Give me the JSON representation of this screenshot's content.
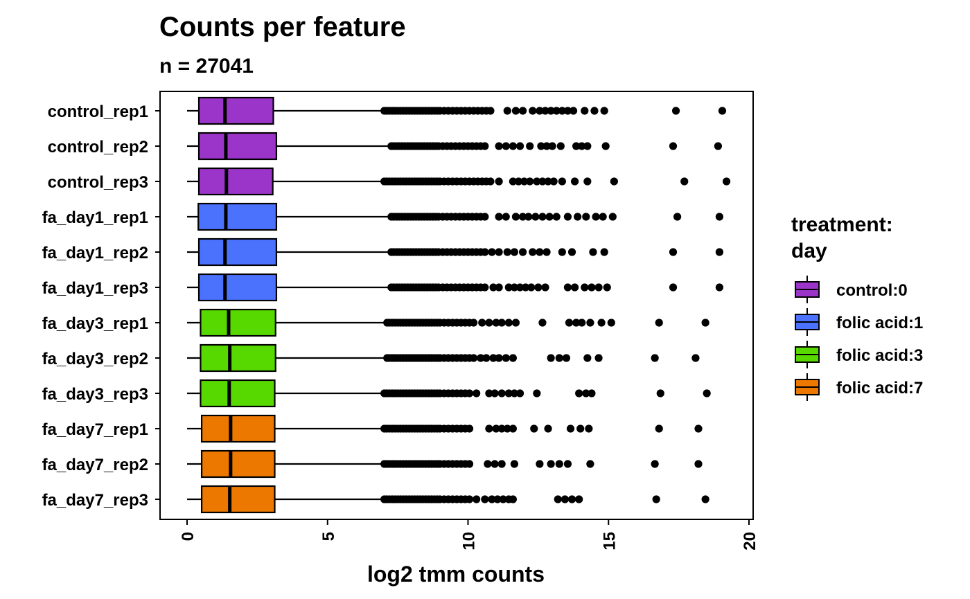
{
  "chart_data": {
    "type": "boxplot",
    "orientation": "horizontal",
    "title": "Counts per feature",
    "subtitle": "n = 27041",
    "xlabel": "log2 tmm counts",
    "ylabel": "",
    "xlim": [
      -0.9,
      20.1
    ],
    "xticks": [
      0,
      5,
      10,
      15,
      20
    ],
    "grid": false,
    "legend": {
      "title_lines": [
        "treatment:",
        "day"
      ],
      "position": "right",
      "entries": [
        {
          "label": "control:0",
          "color": "#9b35c9"
        },
        {
          "label": "folic acid:1",
          "color": "#4a72fd"
        },
        {
          "label": "folic acid:3",
          "color": "#57d900"
        },
        {
          "label": "folic acid:7",
          "color": "#ed7800"
        }
      ]
    },
    "samples": [
      {
        "name": "control_rep1",
        "group": 0,
        "whisker_low": 0.0,
        "q1": 0.42,
        "median": 1.35,
        "q3": 3.07,
        "whisker_high": 7.0,
        "outliers": [
          7.02,
          7.1,
          7.2,
          7.3,
          7.4,
          7.5,
          7.6,
          7.7,
          7.8,
          7.9,
          8.0,
          8.1,
          8.2,
          8.3,
          8.4,
          8.5,
          8.6,
          8.7,
          8.8,
          8.9,
          9.0,
          9.15,
          9.3,
          9.45,
          9.6,
          9.75,
          9.9,
          10.05,
          10.2,
          10.35,
          10.5,
          10.65,
          10.8,
          11.4,
          11.7,
          11.95,
          12.3,
          12.55,
          12.75,
          12.95,
          13.15,
          13.35,
          13.55,
          13.75,
          14.15,
          14.5,
          14.85,
          17.4,
          19.05
        ]
      },
      {
        "name": "control_rep2",
        "group": 0,
        "whisker_low": 0.0,
        "q1": 0.42,
        "median": 1.38,
        "q3": 3.18,
        "whisker_high": 7.25,
        "outliers": [
          7.27,
          7.35,
          7.45,
          7.55,
          7.65,
          7.75,
          7.85,
          7.95,
          8.05,
          8.15,
          8.25,
          8.35,
          8.45,
          8.55,
          8.65,
          8.75,
          8.85,
          8.95,
          9.1,
          9.25,
          9.4,
          9.55,
          9.7,
          9.85,
          10.0,
          10.15,
          10.3,
          10.45,
          10.6,
          11.1,
          11.35,
          11.6,
          11.85,
          12.2,
          12.6,
          12.8,
          13.0,
          13.3,
          13.85,
          14.05,
          14.25,
          14.9,
          17.3,
          18.9
        ]
      },
      {
        "name": "control_rep3",
        "group": 0,
        "whisker_low": 0.0,
        "q1": 0.42,
        "median": 1.4,
        "q3": 3.05,
        "whisker_high": 7.0,
        "outliers": [
          7.02,
          7.1,
          7.2,
          7.3,
          7.4,
          7.5,
          7.6,
          7.7,
          7.8,
          7.9,
          8.0,
          8.1,
          8.2,
          8.3,
          8.4,
          8.5,
          8.6,
          8.7,
          8.8,
          8.9,
          9.0,
          9.15,
          9.3,
          9.45,
          9.6,
          9.75,
          9.9,
          10.05,
          10.2,
          10.35,
          10.5,
          10.65,
          10.8,
          11.1,
          11.6,
          11.8,
          12.0,
          12.2,
          12.45,
          12.65,
          12.85,
          13.05,
          13.35,
          13.8,
          14.25,
          15.2,
          17.7,
          19.2
        ]
      },
      {
        "name": "fa_day1_rep1",
        "group": 1,
        "whisker_low": 0.0,
        "q1": 0.4,
        "median": 1.38,
        "q3": 3.18,
        "whisker_high": 7.25,
        "outliers": [
          7.27,
          7.35,
          7.45,
          7.55,
          7.65,
          7.75,
          7.85,
          7.95,
          8.05,
          8.15,
          8.25,
          8.35,
          8.45,
          8.55,
          8.65,
          8.75,
          8.85,
          8.95,
          9.1,
          9.25,
          9.4,
          9.55,
          9.7,
          9.85,
          10.0,
          10.15,
          10.3,
          10.45,
          10.6,
          11.1,
          11.35,
          11.7,
          11.95,
          12.15,
          12.4,
          12.65,
          12.9,
          13.15,
          13.55,
          13.9,
          14.2,
          14.55,
          14.8,
          15.15,
          17.45,
          18.95
        ]
      },
      {
        "name": "fa_day1_rep2",
        "group": 1,
        "whisker_low": 0.0,
        "q1": 0.42,
        "median": 1.35,
        "q3": 3.18,
        "whisker_high": 7.25,
        "outliers": [
          7.27,
          7.35,
          7.45,
          7.55,
          7.65,
          7.75,
          7.85,
          7.95,
          8.05,
          8.15,
          8.25,
          8.35,
          8.45,
          8.55,
          8.65,
          8.75,
          8.85,
          8.95,
          9.1,
          9.25,
          9.4,
          9.55,
          9.7,
          9.85,
          10.0,
          10.15,
          10.3,
          10.45,
          10.6,
          10.85,
          11.1,
          11.4,
          11.65,
          11.95,
          12.3,
          12.55,
          12.8,
          13.35,
          13.7,
          14.45,
          14.85,
          17.3,
          18.95
        ]
      },
      {
        "name": "fa_day1_rep3",
        "group": 1,
        "whisker_low": 0.0,
        "q1": 0.42,
        "median": 1.35,
        "q3": 3.18,
        "whisker_high": 7.25,
        "outliers": [
          7.27,
          7.35,
          7.45,
          7.55,
          7.65,
          7.75,
          7.85,
          7.95,
          8.05,
          8.15,
          8.25,
          8.35,
          8.45,
          8.55,
          8.65,
          8.75,
          8.85,
          8.95,
          9.1,
          9.25,
          9.4,
          9.55,
          9.7,
          9.85,
          10.0,
          10.15,
          10.3,
          10.45,
          10.6,
          10.9,
          11.1,
          11.45,
          11.65,
          11.85,
          12.05,
          12.25,
          12.5,
          12.75,
          13.55,
          13.8,
          14.15,
          14.4,
          14.65,
          14.95,
          17.3,
          18.95
        ]
      },
      {
        "name": "fa_day3_rep1",
        "group": 2,
        "whisker_low": 0.0,
        "q1": 0.48,
        "median": 1.48,
        "q3": 3.15,
        "whisker_high": 7.1,
        "outliers": [
          7.12,
          7.2,
          7.3,
          7.4,
          7.5,
          7.6,
          7.7,
          7.8,
          7.9,
          8.0,
          8.1,
          8.2,
          8.3,
          8.4,
          8.5,
          8.6,
          8.7,
          8.8,
          8.9,
          9.0,
          9.15,
          9.3,
          9.45,
          9.6,
          9.75,
          9.9,
          10.05,
          10.2,
          10.5,
          10.75,
          11.0,
          11.2,
          11.45,
          11.7,
          12.65,
          13.6,
          13.85,
          14.05,
          14.35,
          14.75,
          15.1,
          16.8,
          18.45
        ]
      },
      {
        "name": "fa_day3_rep2",
        "group": 2,
        "whisker_low": 0.0,
        "q1": 0.48,
        "median": 1.52,
        "q3": 3.15,
        "whisker_high": 7.1,
        "outliers": [
          7.12,
          7.2,
          7.3,
          7.4,
          7.5,
          7.6,
          7.7,
          7.8,
          7.9,
          8.0,
          8.1,
          8.2,
          8.3,
          8.4,
          8.5,
          8.6,
          8.7,
          8.8,
          8.9,
          9.0,
          9.15,
          9.3,
          9.45,
          9.6,
          9.75,
          9.9,
          10.05,
          10.2,
          10.45,
          10.65,
          10.9,
          11.1,
          11.35,
          11.6,
          12.95,
          13.25,
          13.5,
          14.25,
          14.65,
          16.65,
          18.1
        ]
      },
      {
        "name": "fa_day3_rep3",
        "group": 2,
        "whisker_low": 0.0,
        "q1": 0.48,
        "median": 1.5,
        "q3": 3.12,
        "whisker_high": 7.0,
        "outliers": [
          7.02,
          7.1,
          7.2,
          7.3,
          7.4,
          7.5,
          7.6,
          7.7,
          7.8,
          7.9,
          8.0,
          8.1,
          8.2,
          8.3,
          8.4,
          8.5,
          8.6,
          8.7,
          8.8,
          8.9,
          9.0,
          9.15,
          9.3,
          9.45,
          9.6,
          9.75,
          9.9,
          10.05,
          10.3,
          10.75,
          10.95,
          11.2,
          11.45,
          11.65,
          11.85,
          12.45,
          13.95,
          14.2,
          14.4,
          16.85,
          18.5
        ]
      },
      {
        "name": "fa_day7_rep1",
        "group": 3,
        "whisker_low": 0.0,
        "q1": 0.52,
        "median": 1.55,
        "q3": 3.12,
        "whisker_high": 7.0,
        "outliers": [
          7.02,
          7.1,
          7.2,
          7.3,
          7.4,
          7.5,
          7.6,
          7.7,
          7.8,
          7.9,
          8.0,
          8.1,
          8.2,
          8.3,
          8.4,
          8.5,
          8.6,
          8.7,
          8.8,
          8.9,
          9.0,
          9.15,
          9.3,
          9.45,
          9.6,
          9.75,
          9.9,
          10.05,
          10.75,
          11.0,
          11.2,
          11.4,
          11.6,
          12.35,
          12.85,
          13.65,
          14.0,
          14.3,
          16.8,
          18.2
        ]
      },
      {
        "name": "fa_day7_rep2",
        "group": 3,
        "whisker_low": 0.0,
        "q1": 0.52,
        "median": 1.55,
        "q3": 3.12,
        "whisker_high": 7.0,
        "outliers": [
          7.02,
          7.1,
          7.2,
          7.3,
          7.4,
          7.5,
          7.6,
          7.7,
          7.8,
          7.9,
          8.0,
          8.1,
          8.2,
          8.3,
          8.4,
          8.5,
          8.6,
          8.7,
          8.8,
          8.9,
          9.0,
          9.15,
          9.3,
          9.45,
          9.6,
          9.75,
          9.9,
          10.05,
          10.7,
          10.95,
          11.2,
          11.65,
          12.55,
          12.95,
          13.25,
          13.55,
          14.35,
          16.65,
          18.2
        ]
      },
      {
        "name": "fa_day7_rep3",
        "group": 3,
        "whisker_low": 0.0,
        "q1": 0.52,
        "median": 1.52,
        "q3": 3.12,
        "whisker_high": 7.0,
        "outliers": [
          7.02,
          7.1,
          7.2,
          7.3,
          7.4,
          7.5,
          7.6,
          7.7,
          7.8,
          7.9,
          8.0,
          8.1,
          8.2,
          8.3,
          8.4,
          8.5,
          8.6,
          8.7,
          8.8,
          8.9,
          9.0,
          9.15,
          9.3,
          9.45,
          9.6,
          9.75,
          9.9,
          10.05,
          10.3,
          10.6,
          10.85,
          11.05,
          11.25,
          11.45,
          11.6,
          13.2,
          13.45,
          13.7,
          13.95,
          16.7,
          18.45
        ]
      }
    ]
  }
}
